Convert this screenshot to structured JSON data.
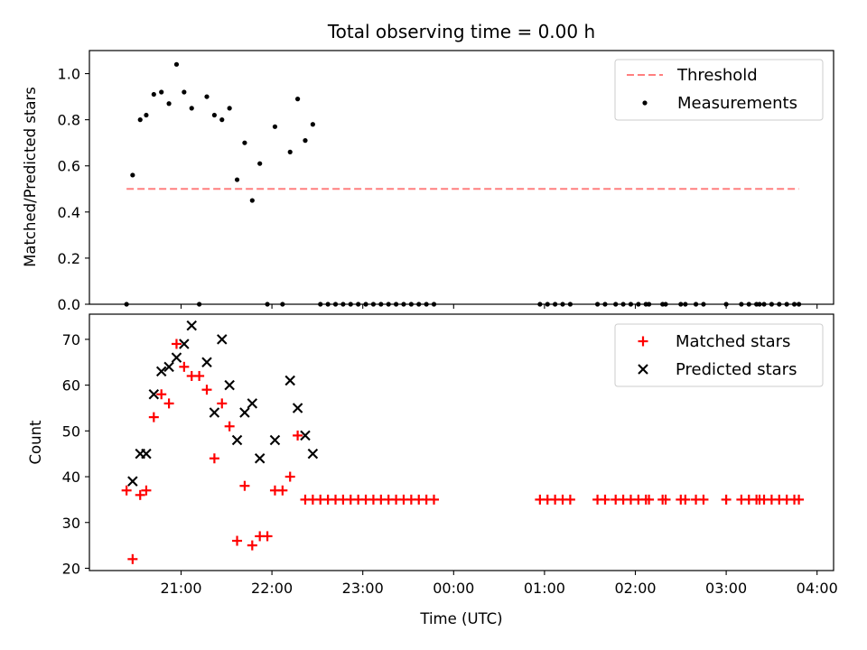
{
  "chart_data": {
    "type": "scatter",
    "title": "Total observing time = 0.00 h",
    "xlabel": "Time (UTC)",
    "x_ticks": [
      "21:00",
      "22:00",
      "23:00",
      "00:00",
      "01:00",
      "02:00",
      "03:00",
      "04:00"
    ],
    "colors": {
      "threshold": "#ff7f7f",
      "measurements": "#000000",
      "matched": "#ff0000",
      "predicted": "#000000"
    },
    "panels": [
      {
        "ylabel": "Matched/Predicted stars",
        "ylim": [
          0,
          1.1
        ],
        "y_ticks": [
          "0.0",
          "0.2",
          "0.4",
          "0.6",
          "0.8",
          "1.0"
        ],
        "legend": {
          "placement": "upper-right",
          "entries": [
            "Threshold",
            "Measurements"
          ]
        },
        "threshold": {
          "name": "Threshold",
          "value": 0.5,
          "x_start": "20:24",
          "x_end": "03:48"
        },
        "measurements": {
          "name": "Measurements",
          "points": [
            [
              "20:24",
              0.0
            ],
            [
              "20:28",
              0.56
            ],
            [
              "20:33",
              0.8
            ],
            [
              "20:37",
              0.82
            ],
            [
              "20:42",
              0.91
            ],
            [
              "20:47",
              0.92
            ],
            [
              "20:52",
              0.87
            ],
            [
              "20:57",
              1.04
            ],
            [
              "21:02",
              0.92
            ],
            [
              "21:07",
              0.85
            ],
            [
              "21:12",
              0.0
            ],
            [
              "21:17",
              0.9
            ],
            [
              "21:22",
              0.82
            ],
            [
              "21:27",
              0.8
            ],
            [
              "21:32",
              0.85
            ],
            [
              "21:37",
              0.54
            ],
            [
              "21:42",
              0.7
            ],
            [
              "21:47",
              0.45
            ],
            [
              "21:52",
              0.61
            ],
            [
              "21:57",
              0.0
            ],
            [
              "22:02",
              0.77
            ],
            [
              "22:07",
              0.0
            ],
            [
              "22:12",
              0.66
            ],
            [
              "22:17",
              0.89
            ],
            [
              "22:22",
              0.71
            ],
            [
              "22:27",
              0.78
            ],
            [
              "22:32",
              0.0
            ],
            [
              "22:37",
              0.0
            ],
            [
              "22:42",
              0.0
            ],
            [
              "22:47",
              0.0
            ],
            [
              "22:52",
              0.0
            ],
            [
              "22:57",
              0.0
            ],
            [
              "23:02",
              0.0
            ],
            [
              "23:07",
              0.0
            ],
            [
              "23:12",
              0.0
            ],
            [
              "23:17",
              0.0
            ],
            [
              "23:22",
              0.0
            ],
            [
              "23:27",
              0.0
            ],
            [
              "23:32",
              0.0
            ],
            [
              "23:37",
              0.0
            ],
            [
              "23:42",
              0.0
            ],
            [
              "23:47",
              0.0
            ],
            [
              "00:57",
              0.0
            ],
            [
              "01:02",
              0.0
            ],
            [
              "01:07",
              0.0
            ],
            [
              "01:12",
              0.0
            ],
            [
              "01:17",
              0.0
            ],
            [
              "01:35",
              0.0
            ],
            [
              "01:40",
              0.0
            ],
            [
              "01:47",
              0.0
            ],
            [
              "01:52",
              0.0
            ],
            [
              "01:57",
              0.0
            ],
            [
              "02:02",
              0.0
            ],
            [
              "02:07",
              0.0
            ],
            [
              "02:09",
              0.0
            ],
            [
              "02:18",
              0.0
            ],
            [
              "02:20",
              0.0
            ],
            [
              "02:30",
              0.0
            ],
            [
              "02:33",
              0.0
            ],
            [
              "02:40",
              0.0
            ],
            [
              "02:45",
              0.0
            ],
            [
              "03:00",
              0.0
            ],
            [
              "03:10",
              0.0
            ],
            [
              "03:15",
              0.0
            ],
            [
              "03:20",
              0.0
            ],
            [
              "03:22",
              0.0
            ],
            [
              "03:25",
              0.0
            ],
            [
              "03:30",
              0.0
            ],
            [
              "03:35",
              0.0
            ],
            [
              "03:40",
              0.0
            ],
            [
              "03:45",
              0.0
            ],
            [
              "03:48",
              0.0
            ]
          ]
        }
      },
      {
        "ylabel": "Count",
        "ylim": [
          19.5,
          75.5
        ],
        "y_ticks": [
          "20",
          "30",
          "40",
          "50",
          "60",
          "70"
        ],
        "legend": {
          "placement": "upper-right",
          "entries": [
            "Matched stars",
            "Predicted stars"
          ]
        },
        "series": [
          {
            "name": "Matched stars",
            "marker": "plus",
            "points": [
              [
                "20:24",
                37
              ],
              [
                "20:28",
                22
              ],
              [
                "20:33",
                36
              ],
              [
                "20:37",
                37
              ],
              [
                "20:42",
                53
              ],
              [
                "20:47",
                58
              ],
              [
                "20:52",
                56
              ],
              [
                "20:57",
                69
              ],
              [
                "21:02",
                64
              ],
              [
                "21:07",
                62
              ],
              [
                "21:12",
                62
              ],
              [
                "21:17",
                59
              ],
              [
                "21:22",
                44
              ],
              [
                "21:27",
                56
              ],
              [
                "21:32",
                51
              ],
              [
                "21:37",
                26
              ],
              [
                "21:42",
                38
              ],
              [
                "21:47",
                25
              ],
              [
                "21:52",
                27
              ],
              [
                "21:57",
                27
              ],
              [
                "22:02",
                37
              ],
              [
                "22:07",
                37
              ],
              [
                "22:12",
                40
              ],
              [
                "22:17",
                49
              ],
              [
                "22:22",
                35
              ],
              [
                "22:27",
                35
              ],
              [
                "22:32",
                35
              ],
              [
                "22:37",
                35
              ],
              [
                "22:42",
                35
              ],
              [
                "22:47",
                35
              ],
              [
                "22:52",
                35
              ],
              [
                "22:57",
                35
              ],
              [
                "23:02",
                35
              ],
              [
                "23:07",
                35
              ],
              [
                "23:12",
                35
              ],
              [
                "23:17",
                35
              ],
              [
                "23:22",
                35
              ],
              [
                "23:27",
                35
              ],
              [
                "23:32",
                35
              ],
              [
                "23:37",
                35
              ],
              [
                "23:42",
                35
              ],
              [
                "23:47",
                35
              ],
              [
                "00:57",
                35
              ],
              [
                "01:02",
                35
              ],
              [
                "01:07",
                35
              ],
              [
                "01:12",
                35
              ],
              [
                "01:17",
                35
              ],
              [
                "01:35",
                35
              ],
              [
                "01:40",
                35
              ],
              [
                "01:47",
                35
              ],
              [
                "01:52",
                35
              ],
              [
                "01:57",
                35
              ],
              [
                "02:02",
                35
              ],
              [
                "02:07",
                35
              ],
              [
                "02:09",
                35
              ],
              [
                "02:18",
                35
              ],
              [
                "02:20",
                35
              ],
              [
                "02:30",
                35
              ],
              [
                "02:33",
                35
              ],
              [
                "02:40",
                35
              ],
              [
                "02:45",
                35
              ],
              [
                "03:00",
                35
              ],
              [
                "03:10",
                35
              ],
              [
                "03:15",
                35
              ],
              [
                "03:20",
                35
              ],
              [
                "03:22",
                35
              ],
              [
                "03:25",
                35
              ],
              [
                "03:30",
                35
              ],
              [
                "03:35",
                35
              ],
              [
                "03:40",
                35
              ],
              [
                "03:45",
                35
              ],
              [
                "03:48",
                35
              ]
            ]
          },
          {
            "name": "Predicted stars",
            "marker": "x",
            "points": [
              [
                "20:28",
                39
              ],
              [
                "20:33",
                45
              ],
              [
                "20:37",
                45
              ],
              [
                "20:42",
                58
              ],
              [
                "20:47",
                63
              ],
              [
                "20:52",
                64
              ],
              [
                "20:57",
                66
              ],
              [
                "21:02",
                69
              ],
              [
                "21:07",
                73
              ],
              [
                "21:17",
                65
              ],
              [
                "21:22",
                54
              ],
              [
                "21:27",
                70
              ],
              [
                "21:32",
                60
              ],
              [
                "21:37",
                48
              ],
              [
                "21:42",
                54
              ],
              [
                "21:47",
                56
              ],
              [
                "21:52",
                44
              ],
              [
                "22:02",
                48
              ],
              [
                "22:12",
                61
              ],
              [
                "22:17",
                55
              ],
              [
                "22:22",
                49
              ],
              [
                "22:27",
                45
              ]
            ]
          }
        ]
      }
    ]
  }
}
